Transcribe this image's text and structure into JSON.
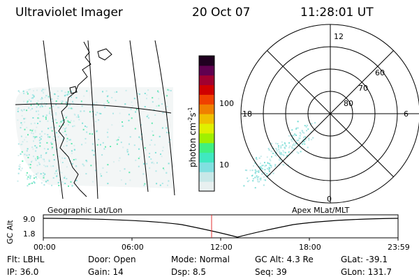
{
  "header": {
    "instrument": "Ultraviolet Imager",
    "date": "20 Oct 07",
    "time": "11:28:01 UT"
  },
  "colorbar": {
    "unit_main": "photon cm",
    "unit_exp1": "-2",
    "unit_mid": "s",
    "unit_exp2": "-1",
    "ticks": [
      {
        "label": "100",
        "value": 100
      },
      {
        "label": "10",
        "value": 10
      }
    ],
    "colors": [
      "#e8f0f0",
      "#c8e8e8",
      "#80e0e0",
      "#40e8c0",
      "#40f080",
      "#a0f000",
      "#e0f000",
      "#f0c000",
      "#f08000",
      "#f04000",
      "#d00000",
      "#a00030",
      "#600050",
      "#200020"
    ]
  },
  "map_left": {
    "label": "Geographic Lat/Lon"
  },
  "map_right": {
    "label": "Apex MLat/MLT",
    "mlt_labels": {
      "top": "12",
      "bottom": "0",
      "left": "18",
      "right": "6"
    },
    "lat_labels": [
      "60",
      "70",
      "80"
    ]
  },
  "timeline": {
    "axis_label": "GC Alt",
    "y_labels": [
      "9.0",
      "1.8"
    ],
    "x_labels": [
      "00:00",
      "06:00",
      "12:00",
      "18:00",
      "23:59"
    ],
    "current_time": "11:28",
    "marker_color": "#e03030"
  },
  "info": {
    "row1": [
      {
        "key": "Flt:",
        "value": "LBHL"
      },
      {
        "key": "Door:",
        "value": "Open"
      },
      {
        "key": "Mode:",
        "value": "Normal"
      },
      {
        "key": "GC Alt:",
        "value": "4.3 Re"
      },
      {
        "key": "GLat:",
        "value": "-39.1"
      }
    ],
    "row2": [
      {
        "key": "IP:",
        "value": "36.0"
      },
      {
        "key": "Gain:",
        "value": "14"
      },
      {
        "key": "Dsp:",
        "value": "8.5"
      },
      {
        "key": "Seq:",
        "value": "39"
      },
      {
        "key": "GLon:",
        "value": "131.7"
      }
    ]
  }
}
